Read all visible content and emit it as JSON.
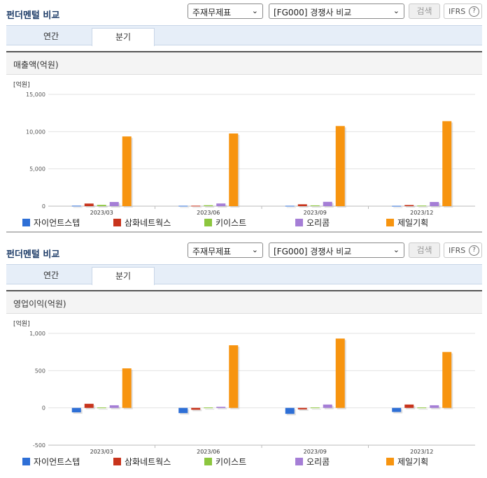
{
  "panels": [
    {
      "header": {
        "title": "펀더멘털 비교",
        "subject_select": "주재무제표",
        "peer_select": "[FG000] 경쟁사 비교",
        "search_label": "검색",
        "ifrs_label": "IFRS",
        "help_glyph": "?"
      },
      "tabs": [
        {
          "label": "연간"
        },
        {
          "label": "분기",
          "active": true
        }
      ],
      "chart_title": "매출액(억원)",
      "chart_data": {
        "type": "bar",
        "unit_label": "[억원]",
        "categories": [
          "2023/03",
          "2023/06",
          "2023/09",
          "2023/12"
        ],
        "ylim": [
          0,
          15000
        ],
        "yticks": [
          0,
          5000,
          10000,
          15000
        ],
        "ytick_labels": [
          "0",
          "5,000",
          "10,000",
          "15,000"
        ],
        "series": [
          {
            "name": "자이언트스텝",
            "color": "#2e6fd6",
            "values": [
              60,
              50,
              50,
              40
            ]
          },
          {
            "name": "삼화네트웍스",
            "color": "#c8341c",
            "values": [
              350,
              60,
              250,
              150
            ]
          },
          {
            "name": "키이스트",
            "color": "#8cc63e",
            "values": [
              170,
              120,
              100,
              80
            ]
          },
          {
            "name": "오리콤",
            "color": "#a57ed6",
            "values": [
              560,
              360,
              580,
              560
            ]
          },
          {
            "name": "제일기획",
            "color": "#f7940f",
            "values": [
              9350,
              9750,
              10750,
              11400
            ]
          }
        ]
      }
    },
    {
      "header": {
        "title": "펀더멘털 비교",
        "subject_select": "주재무제표",
        "peer_select": "[FG000] 경쟁사 비교",
        "search_label": "검색",
        "ifrs_label": "IFRS",
        "help_glyph": "?"
      },
      "tabs": [
        {
          "label": "연간"
        },
        {
          "label": "분기",
          "active": true
        }
      ],
      "chart_title": "영업이익(억원)",
      "chart_data": {
        "type": "bar",
        "unit_label": "[억원]",
        "categories": [
          "2023/03",
          "2023/06",
          "2023/09",
          "2023/12"
        ],
        "ylim": [
          -500,
          1000
        ],
        "yticks": [
          -500,
          0,
          500,
          1000
        ],
        "ytick_labels": [
          "-500",
          "0",
          "500",
          "1,000"
        ],
        "series": [
          {
            "name": "자이언트스텝",
            "color": "#2e6fd6",
            "values": [
              -60,
              -70,
              -80,
              -55
            ]
          },
          {
            "name": "삼화네트웍스",
            "color": "#c8341c",
            "values": [
              55,
              -25,
              -20,
              45
            ]
          },
          {
            "name": "키이스트",
            "color": "#8cc63e",
            "values": [
              5,
              5,
              5,
              5
            ]
          },
          {
            "name": "오리콤",
            "color": "#a57ed6",
            "values": [
              35,
              15,
              45,
              35
            ]
          },
          {
            "name": "제일기획",
            "color": "#f7940f",
            "values": [
              530,
              840,
              930,
              750
            ]
          }
        ]
      }
    }
  ]
}
